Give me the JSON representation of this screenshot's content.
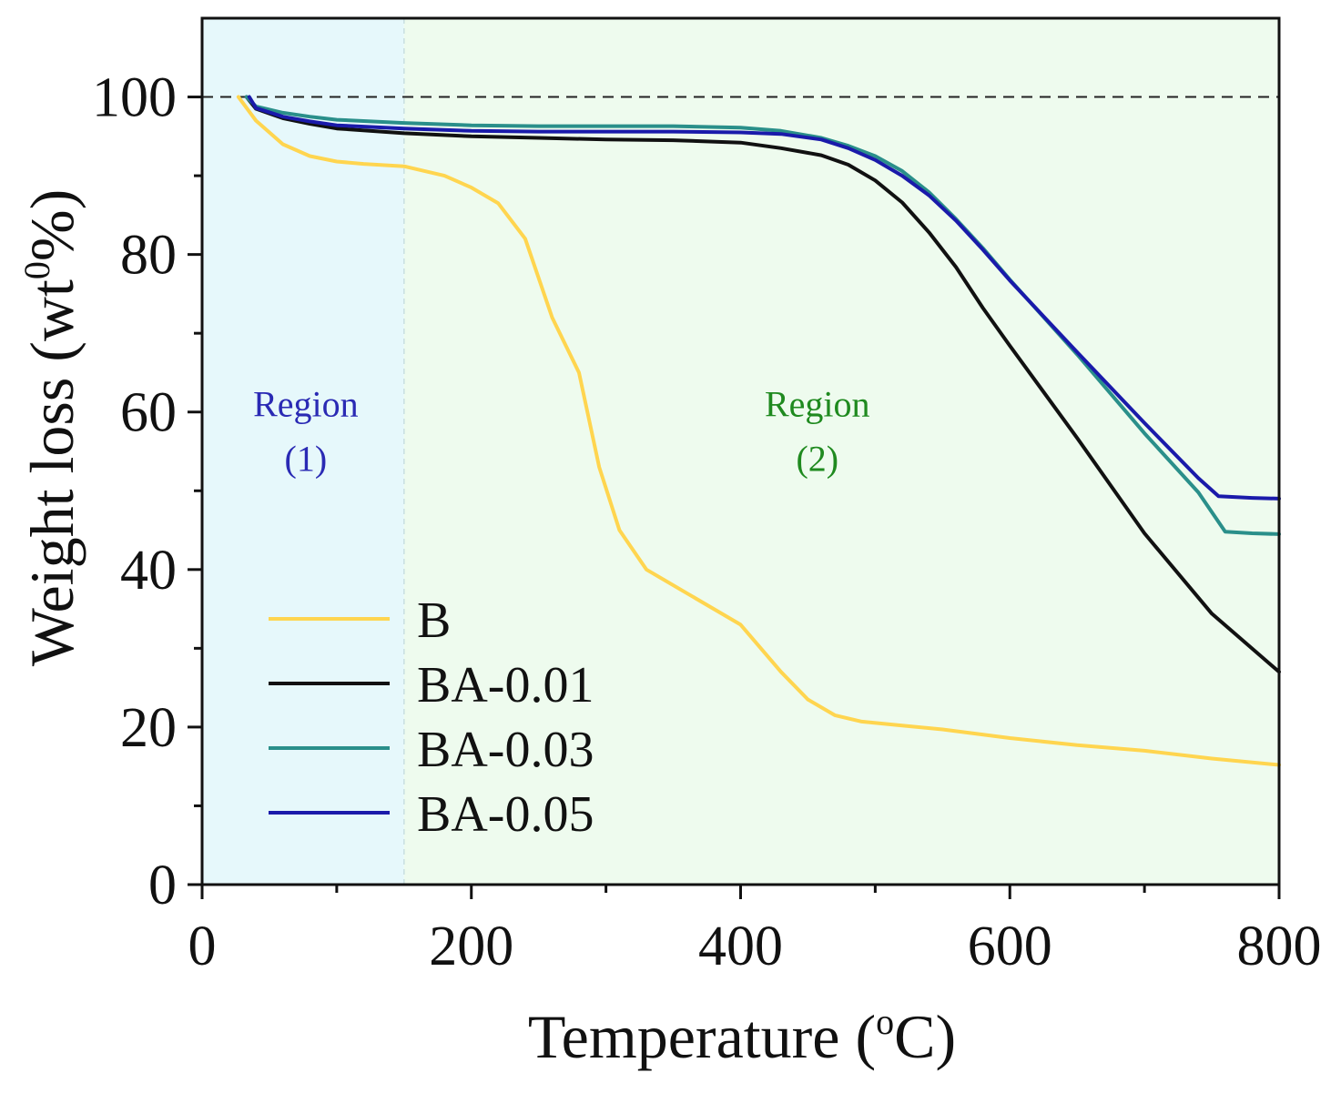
{
  "chart_data": {
    "type": "line",
    "title": "",
    "xlabel": {
      "main": "Temperature (",
      "sup": "o",
      "tail": "C)"
    },
    "ylabel": {
      "main": "Weight loss (wt",
      "sup": "0",
      "tail": "%)"
    },
    "xlim": [
      0,
      800
    ],
    "ylim": [
      0,
      110
    ],
    "x_ticks": [
      0,
      200,
      400,
      600,
      800
    ],
    "x_tick_labels": [
      "0",
      "200",
      "400",
      "600",
      "800"
    ],
    "x_minor_ticks": [
      100,
      300,
      500,
      700
    ],
    "y_ticks": [
      0,
      20,
      40,
      60,
      80,
      100
    ],
    "y_tick_labels": [
      "0",
      "20",
      "40",
      "60",
      "80",
      "100"
    ],
    "y_minor_ticks": [
      10,
      30,
      50,
      70,
      90
    ],
    "reference_line": {
      "y": 100,
      "style": "dashed"
    },
    "regions": [
      {
        "name": "Region (1)",
        "line1": "Region",
        "line2": "(1)",
        "x_start": 0,
        "x_end": 150,
        "color": "#e6f8fb",
        "text_color": "#2a2ab4",
        "label_x": 77,
        "label_y": 56
      },
      {
        "name": "Region (2)",
        "line1": "Region",
        "line2": "(2)",
        "x_start": 150,
        "x_end": 800,
        "color": "#eefbee",
        "text_color": "#1f8a1f",
        "label_x": 457,
        "label_y": 56
      }
    ],
    "legend_position": "bottom-left",
    "series": [
      {
        "name": "B",
        "color": "#ffd54f",
        "x": [
          27,
          40,
          60,
          80,
          100,
          120,
          150,
          180,
          200,
          220,
          240,
          260,
          280,
          295,
          310,
          330,
          360,
          400,
          430,
          450,
          470,
          490,
          520,
          550,
          600,
          650,
          700,
          750,
          800
        ],
        "y": [
          100,
          97,
          94,
          92.5,
          91.8,
          91.5,
          91.2,
          90,
          88.5,
          86.5,
          82,
          72,
          65,
          53,
          45,
          40,
          37,
          33,
          27,
          23.5,
          21.5,
          20.7,
          20.2,
          19.7,
          18.6,
          17.7,
          17,
          16,
          15.2
        ]
      },
      {
        "name": "BA-0.01",
        "color": "#111111",
        "x": [
          33,
          40,
          60,
          80,
          100,
          150,
          200,
          250,
          300,
          350,
          400,
          430,
          460,
          480,
          500,
          520,
          540,
          560,
          580,
          600,
          650,
          700,
          750,
          800
        ],
        "y": [
          100,
          98.5,
          97.3,
          96.6,
          96,
          95.4,
          95,
          94.8,
          94.6,
          94.5,
          94.2,
          93.5,
          92.6,
          91.4,
          89.4,
          86.6,
          82.8,
          78.4,
          73.2,
          68.4,
          56.7,
          44.6,
          34.4,
          27
        ]
      },
      {
        "name": "BA-0.03",
        "color": "#2a8f8a",
        "x": [
          33,
          40,
          60,
          80,
          100,
          150,
          200,
          250,
          300,
          350,
          400,
          430,
          460,
          480,
          500,
          520,
          540,
          560,
          580,
          600,
          650,
          700,
          740,
          760,
          780,
          800
        ],
        "y": [
          100,
          98.8,
          98,
          97.5,
          97.1,
          96.7,
          96.4,
          96.3,
          96.3,
          96.3,
          96.1,
          95.7,
          94.8,
          93.8,
          92.5,
          90.6,
          87.9,
          84.5,
          80.8,
          76.8,
          67.3,
          57.3,
          49.8,
          44.8,
          44.6,
          44.5
        ]
      },
      {
        "name": "BA-0.05",
        "color": "#1a1aaa",
        "x": [
          35,
          40,
          60,
          80,
          100,
          150,
          200,
          250,
          300,
          350,
          400,
          430,
          460,
          480,
          500,
          520,
          540,
          560,
          580,
          600,
          650,
          700,
          740,
          755,
          780,
          800
        ],
        "y": [
          100,
          98.6,
          97.5,
          96.9,
          96.4,
          96,
          95.7,
          95.6,
          95.6,
          95.6,
          95.5,
          95.3,
          94.6,
          93.5,
          92,
          90,
          87.5,
          84.3,
          80.6,
          76.7,
          67.6,
          58.6,
          51.6,
          49.3,
          49.1,
          49
        ]
      }
    ]
  }
}
